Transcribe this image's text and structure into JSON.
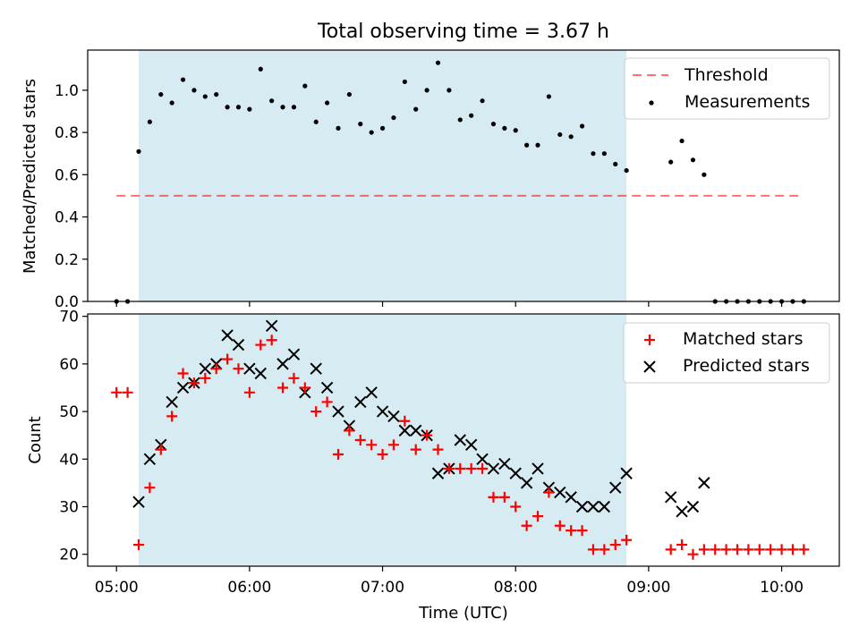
{
  "title": "Total observing time = 3.67 h",
  "colors": {
    "shade": "#add8e6",
    "threshold": "#ff0000",
    "matched": "#ff0000",
    "predicted": "#000000",
    "measurement": "#000000"
  },
  "chart_data": [
    {
      "type": "scatter",
      "ylabel": "Matched/Predicted stars",
      "xlim": [
        "04:47",
        "10:26"
      ],
      "ylim": [
        0,
        1.19
      ],
      "yticks": [
        0.0,
        0.2,
        0.4,
        0.6,
        0.8,
        1.0
      ],
      "ytick_labels": [
        "0.0",
        "0.2",
        "0.4",
        "0.6",
        "0.8",
        "1.0"
      ],
      "shaded_span": [
        "05:10",
        "08:50"
      ],
      "threshold": {
        "name": "Threshold",
        "y": 0.5,
        "x_range": [
          "05:00",
          "10:08"
        ],
        "style": "dashed"
      },
      "legend": {
        "position": "top-right",
        "entries": [
          "Threshold",
          "Measurements"
        ]
      },
      "series": [
        {
          "name": "Measurements",
          "x": [
            "05:00",
            "05:05",
            "05:10",
            "05:15",
            "05:20",
            "05:25",
            "05:30",
            "05:35",
            "05:40",
            "05:45",
            "05:50",
            "05:55",
            "06:00",
            "06:05",
            "06:10",
            "06:15",
            "06:20",
            "06:25",
            "06:30",
            "06:35",
            "06:40",
            "06:45",
            "06:50",
            "06:55",
            "07:00",
            "07:05",
            "07:10",
            "07:15",
            "07:20",
            "07:25",
            "07:30",
            "07:35",
            "07:40",
            "07:45",
            "07:50",
            "07:55",
            "08:00",
            "08:05",
            "08:10",
            "08:15",
            "08:20",
            "08:25",
            "08:30",
            "08:35",
            "08:40",
            "08:45",
            "08:50",
            "09:10",
            "09:15",
            "09:20",
            "09:25",
            "09:30",
            "09:35",
            "09:40",
            "09:45",
            "09:50",
            "09:55",
            "10:00",
            "10:05",
            "10:10"
          ],
          "values": [
            0.0,
            0.0,
            0.71,
            0.85,
            0.98,
            0.94,
            1.05,
            1.0,
            0.97,
            0.98,
            0.92,
            0.92,
            0.91,
            1.1,
            0.95,
            0.92,
            0.92,
            1.02,
            0.85,
            0.94,
            0.82,
            0.98,
            0.84,
            0.8,
            0.82,
            0.87,
            1.04,
            0.91,
            1.0,
            1.13,
            1.0,
            0.86,
            0.88,
            0.95,
            0.84,
            0.82,
            0.81,
            0.74,
            0.74,
            0.97,
            0.79,
            0.78,
            0.83,
            0.7,
            0.7,
            0.65,
            0.62,
            0.66,
            0.76,
            0.67,
            0.6,
            0.0,
            0.0,
            0.0,
            0.0,
            0.0,
            0.0,
            0.0,
            0.0,
            0.0
          ]
        }
      ]
    },
    {
      "type": "scatter",
      "xlabel": "Time (UTC)",
      "ylabel": "Count",
      "xlim": [
        "04:47",
        "10:26"
      ],
      "ylim": [
        17.5,
        70.5
      ],
      "yticks": [
        20,
        30,
        40,
        50,
        60,
        70
      ],
      "ytick_labels": [
        "20",
        "30",
        "40",
        "50",
        "60",
        "70"
      ],
      "xticks": [
        "05:00",
        "06:00",
        "07:00",
        "08:00",
        "09:00",
        "10:00"
      ],
      "xtick_labels": [
        "05:00",
        "06:00",
        "07:00",
        "08:00",
        "09:00",
        "10:00"
      ],
      "shaded_span": [
        "05:10",
        "08:50"
      ],
      "legend": {
        "position": "top-right",
        "entries": [
          "Matched stars",
          "Predicted stars"
        ]
      },
      "series": [
        {
          "name": "Matched stars",
          "marker": "+",
          "x": [
            "05:00",
            "05:05",
            "05:10",
            "05:15",
            "05:20",
            "05:25",
            "05:30",
            "05:35",
            "05:40",
            "05:45",
            "05:50",
            "05:55",
            "06:00",
            "06:05",
            "06:10",
            "06:15",
            "06:20",
            "06:25",
            "06:30",
            "06:35",
            "06:40",
            "06:45",
            "06:50",
            "06:55",
            "07:00",
            "07:05",
            "07:10",
            "07:15",
            "07:20",
            "07:25",
            "07:30",
            "07:35",
            "07:40",
            "07:45",
            "07:50",
            "07:55",
            "08:00",
            "08:05",
            "08:10",
            "08:15",
            "08:20",
            "08:25",
            "08:30",
            "08:35",
            "08:40",
            "08:45",
            "08:50",
            "09:10",
            "09:15",
            "09:20",
            "09:25",
            "09:30",
            "09:35",
            "09:40",
            "09:45",
            "09:50",
            "09:55",
            "10:00",
            "10:05",
            "10:10"
          ],
          "values": [
            54,
            54,
            22,
            34,
            42,
            49,
            58,
            56,
            57,
            59,
            61,
            59,
            54,
            64,
            65,
            55,
            57,
            55,
            50,
            52,
            41,
            46,
            44,
            43,
            41,
            43,
            48,
            42,
            45,
            42,
            38,
            38,
            38,
            38,
            32,
            32,
            30,
            26,
            28,
            33,
            26,
            25,
            25,
            21,
            21,
            22,
            23,
            21,
            22,
            20,
            21,
            21,
            21,
            21,
            21,
            21,
            21,
            21,
            21,
            21
          ]
        },
        {
          "name": "Predicted stars",
          "marker": "x",
          "x": [
            "05:10",
            "05:15",
            "05:20",
            "05:25",
            "05:30",
            "05:35",
            "05:40",
            "05:45",
            "05:50",
            "05:55",
            "06:00",
            "06:05",
            "06:10",
            "06:15",
            "06:20",
            "06:25",
            "06:30",
            "06:35",
            "06:40",
            "06:45",
            "06:50",
            "06:55",
            "07:00",
            "07:05",
            "07:10",
            "07:15",
            "07:20",
            "07:25",
            "07:30",
            "07:35",
            "07:40",
            "07:45",
            "07:50",
            "07:55",
            "08:00",
            "08:05",
            "08:10",
            "08:15",
            "08:20",
            "08:25",
            "08:30",
            "08:35",
            "08:40",
            "08:45",
            "08:50",
            "09:10",
            "09:15",
            "09:20",
            "09:25"
          ],
          "values": [
            31,
            40,
            43,
            52,
            55,
            56,
            59,
            60,
            66,
            64,
            59,
            58,
            68,
            60,
            62,
            54,
            59,
            55,
            50,
            47,
            52,
            54,
            50,
            49,
            46,
            46,
            45,
            37,
            38,
            44,
            43,
            40,
            38,
            39,
            37,
            35,
            38,
            34,
            33,
            32,
            30,
            30,
            30,
            34,
            37,
            32,
            29,
            30,
            35
          ]
        }
      ]
    }
  ]
}
